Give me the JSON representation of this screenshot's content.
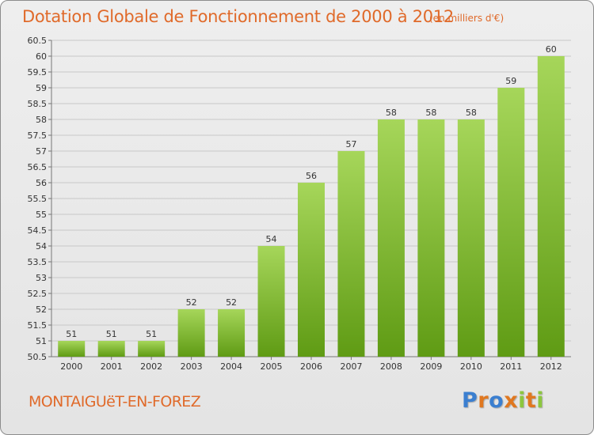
{
  "header": {
    "title": "Dotation Globale de Fonctionnement de 2000 à 2012",
    "subtitle": "(en milliers d'€)"
  },
  "footer": {
    "place": "MONTAIGUëT-EN-FOREZ",
    "logo_letters": [
      "P",
      "r",
      "o",
      "x",
      "i",
      "t",
      "i"
    ],
    "logo_colors": [
      "#3b7fd0",
      "#e07820",
      "#3b7fd0",
      "#e07820",
      "#8cc63f",
      "#e07820",
      "#8cc63f"
    ]
  },
  "colors": {
    "title": "#e06a2a",
    "bar_light": "#a6d65a",
    "bar_dark": "#5f9b14",
    "grid": "#c8c8c8"
  },
  "chart_data": {
    "type": "bar",
    "title": "Dotation Globale de Fonctionnement de 2000 à 2012",
    "xlabel": "",
    "ylabel": "(en milliers d'€)",
    "categories": [
      "2000",
      "2001",
      "2002",
      "2003",
      "2004",
      "2005",
      "2006",
      "2007",
      "2008",
      "2009",
      "2010",
      "2011",
      "2012"
    ],
    "values": [
      51,
      51,
      51,
      52,
      52,
      54,
      56,
      57,
      58,
      58,
      58,
      59,
      60
    ],
    "data_labels": [
      "51",
      "51",
      "51",
      "52",
      "52",
      "54",
      "56",
      "57",
      "58",
      "58",
      "58",
      "59",
      "60"
    ],
    "ylim": [
      50.5,
      60.5
    ],
    "yticks": [
      "50.5",
      "51",
      "51.5",
      "52",
      "52.5",
      "53",
      "53.5",
      "54",
      "54.5",
      "55",
      "55.5",
      "56",
      "56.5",
      "57",
      "57.5",
      "58",
      "58.5",
      "59",
      "59.5",
      "60",
      "60.5"
    ],
    "grid": true
  }
}
